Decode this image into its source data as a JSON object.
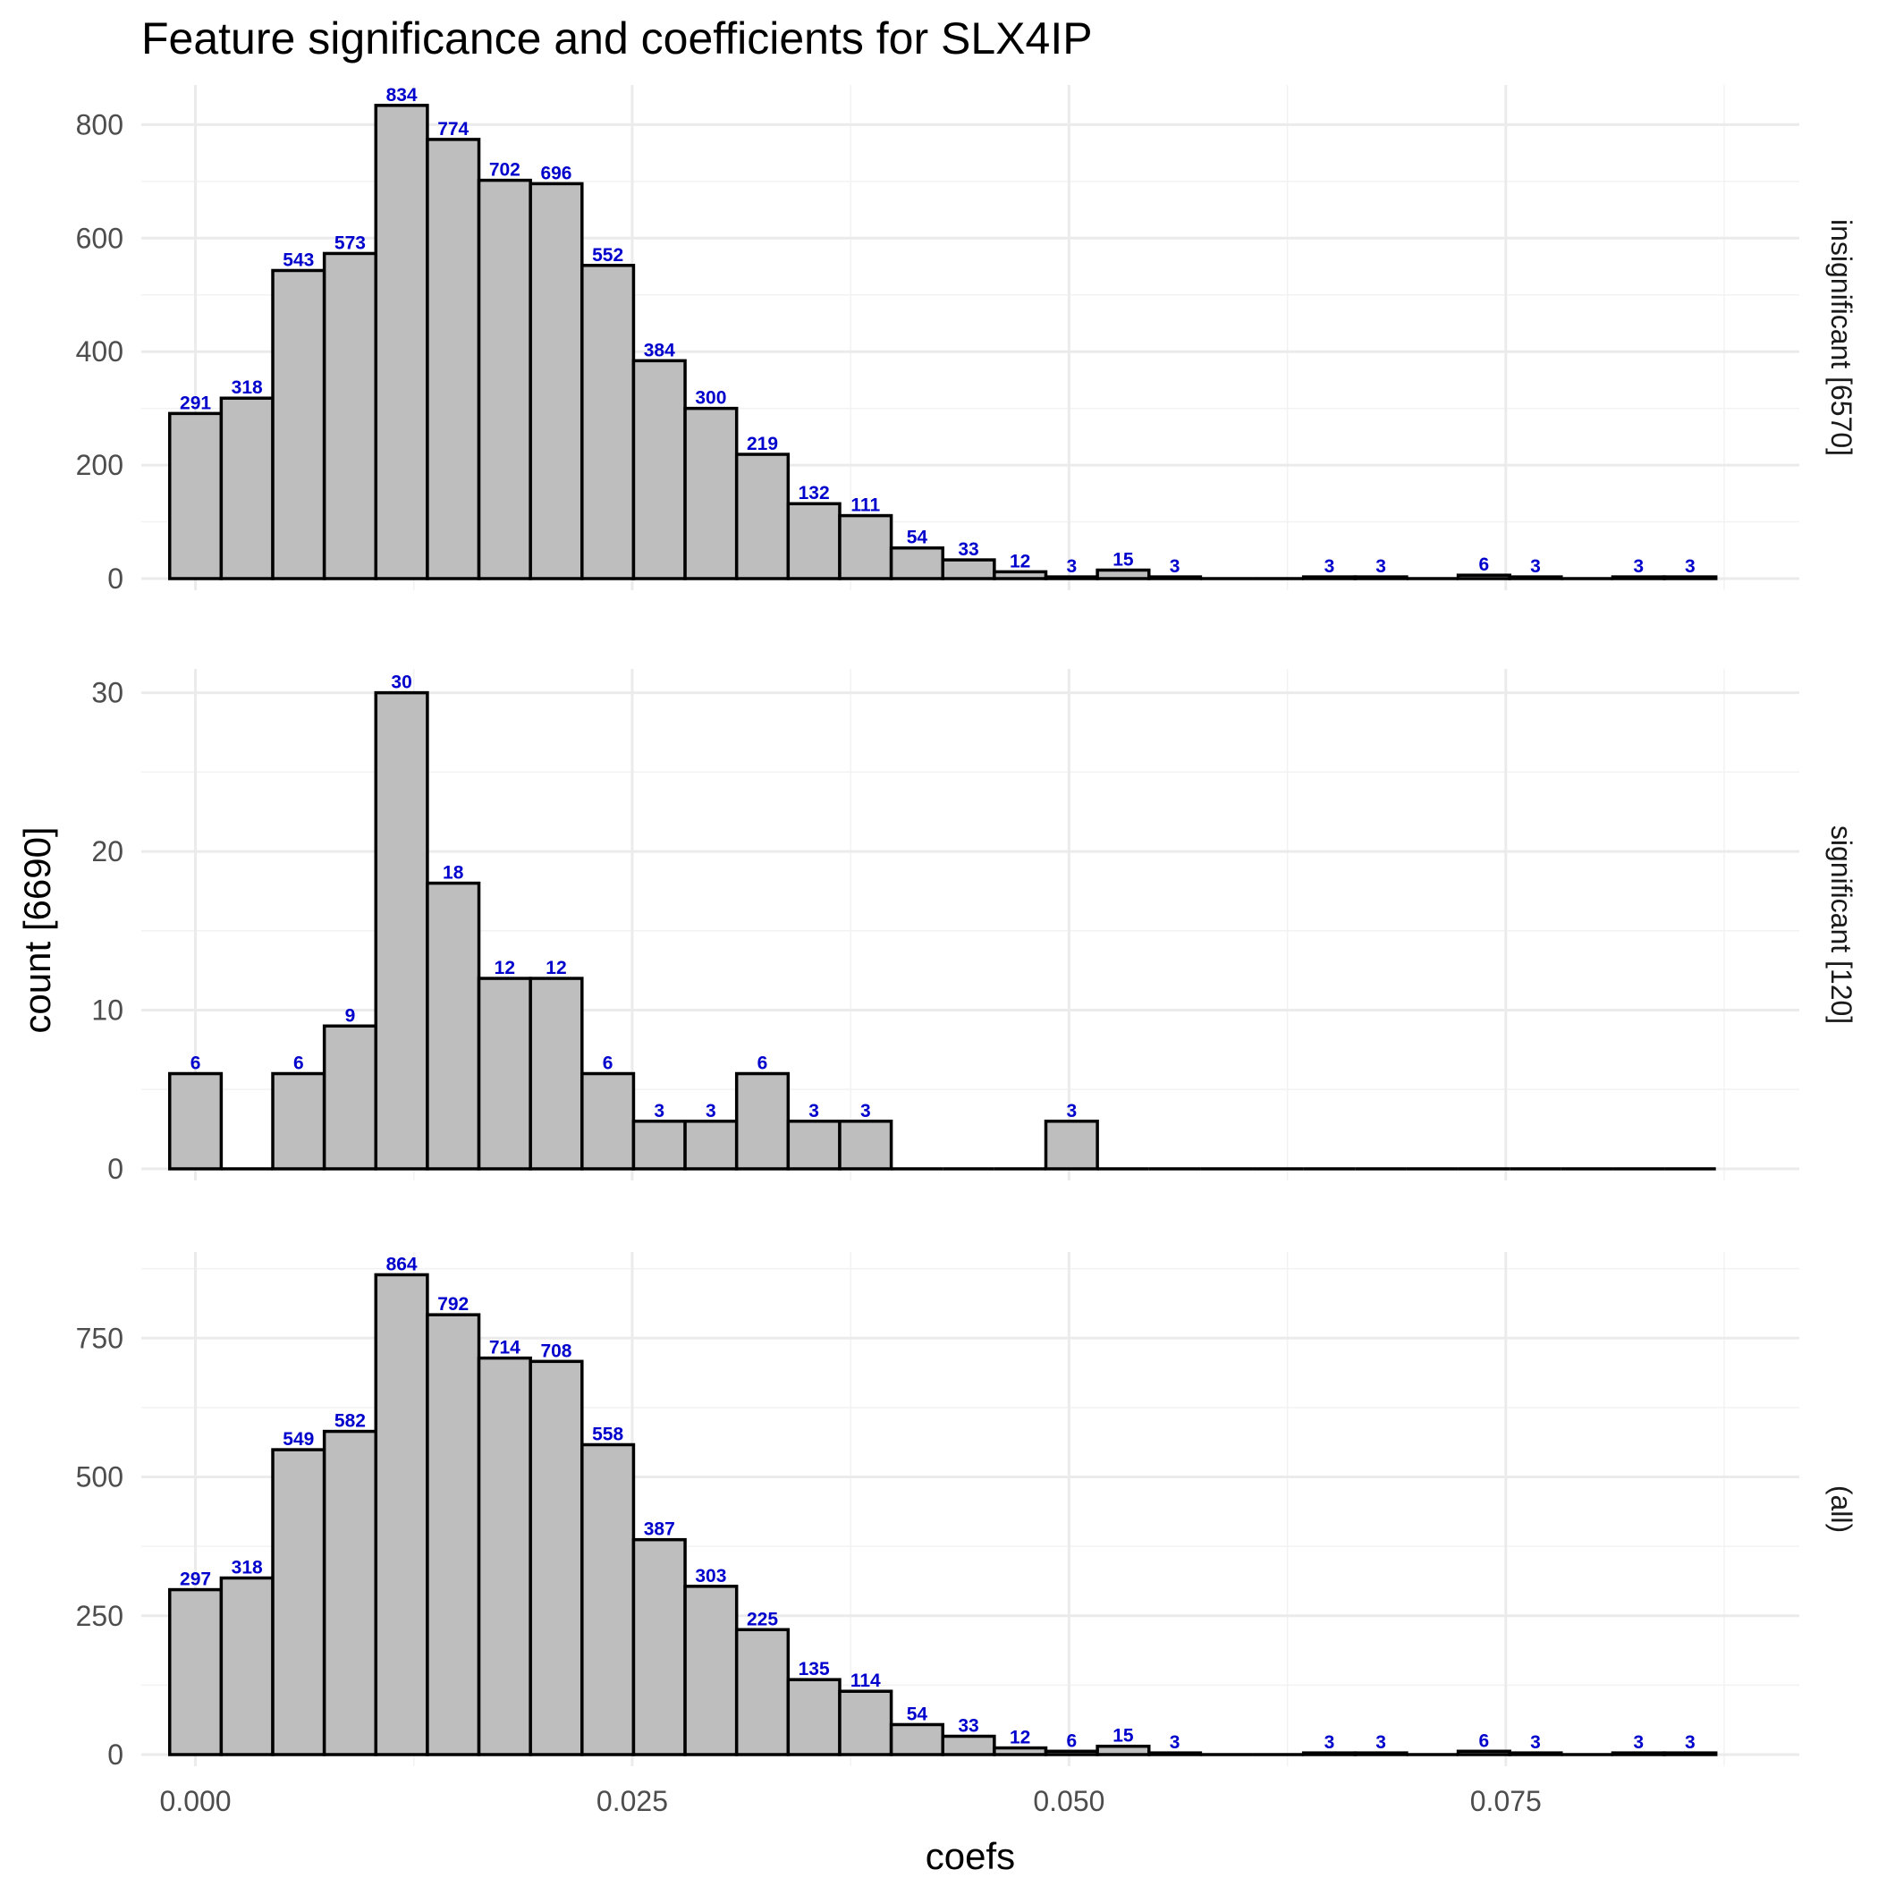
{
  "chart_data": {
    "type": "bar",
    "subtype": "faceted-histogram",
    "title": "Feature significance and coefficients for SLX4IP",
    "xlabel": "coefs",
    "ylabel": "count [6690]",
    "xlim": [
      -0.0031,
      0.0918
    ],
    "x_ticks": [
      0.0,
      0.025,
      0.05,
      0.075
    ],
    "x_tick_labels": [
      "0.000",
      "0.025",
      "0.050",
      "0.075"
    ],
    "bin_width": 0.00295,
    "bin_centers": [
      0.0,
      0.00295,
      0.0059,
      0.00885,
      0.0118,
      0.01475,
      0.0177,
      0.02065,
      0.0236,
      0.02655,
      0.0295,
      0.03245,
      0.0354,
      0.03835,
      0.0413,
      0.04425,
      0.0472,
      0.05015,
      0.0531,
      0.05605,
      0.059,
      0.06195,
      0.0649,
      0.06785,
      0.0708,
      0.07375,
      0.0767,
      0.07965,
      0.0826,
      0.08555
    ],
    "grid": true,
    "facets": [
      {
        "strip_label": "insignificant [6570]",
        "ylim": [
          0,
          870
        ],
        "y_ticks": [
          0,
          200,
          400,
          600,
          800
        ],
        "y_tick_labels": [
          "0",
          "200",
          "400",
          "600",
          "800"
        ],
        "values": [
          291,
          318,
          543,
          573,
          834,
          774,
          702,
          696,
          552,
          384,
          300,
          219,
          132,
          111,
          54,
          33,
          12,
          3,
          15,
          3,
          0,
          0,
          3,
          3,
          0,
          6,
          3,
          0,
          3,
          3
        ]
      },
      {
        "strip_label": "significant [120]",
        "ylim": [
          0,
          31.5
        ],
        "y_ticks": [
          0,
          10,
          20,
          30
        ],
        "y_tick_labels": [
          "0",
          "10",
          "20",
          "30"
        ],
        "values": [
          6,
          0,
          6,
          9,
          30,
          18,
          12,
          12,
          6,
          3,
          3,
          6,
          3,
          3,
          0,
          0,
          0,
          3,
          0,
          0,
          0,
          0,
          0,
          0,
          0,
          0,
          0,
          0,
          0,
          0
        ]
      },
      {
        "strip_label": "(all)",
        "ylim": [
          0,
          905
        ],
        "y_ticks": [
          0,
          250,
          500,
          750
        ],
        "y_tick_labels": [
          "0",
          "250",
          "500",
          "750"
        ],
        "values": [
          297,
          318,
          549,
          582,
          864,
          792,
          714,
          708,
          558,
          387,
          303,
          225,
          135,
          114,
          54,
          33,
          12,
          6,
          15,
          3,
          0,
          0,
          3,
          3,
          0,
          6,
          3,
          0,
          3,
          3
        ]
      }
    ],
    "colors": {
      "bar_fill": "#bebebe",
      "bar_outline": "#000000",
      "count_label": "#0000cc",
      "grid": "#ebebeb"
    }
  }
}
